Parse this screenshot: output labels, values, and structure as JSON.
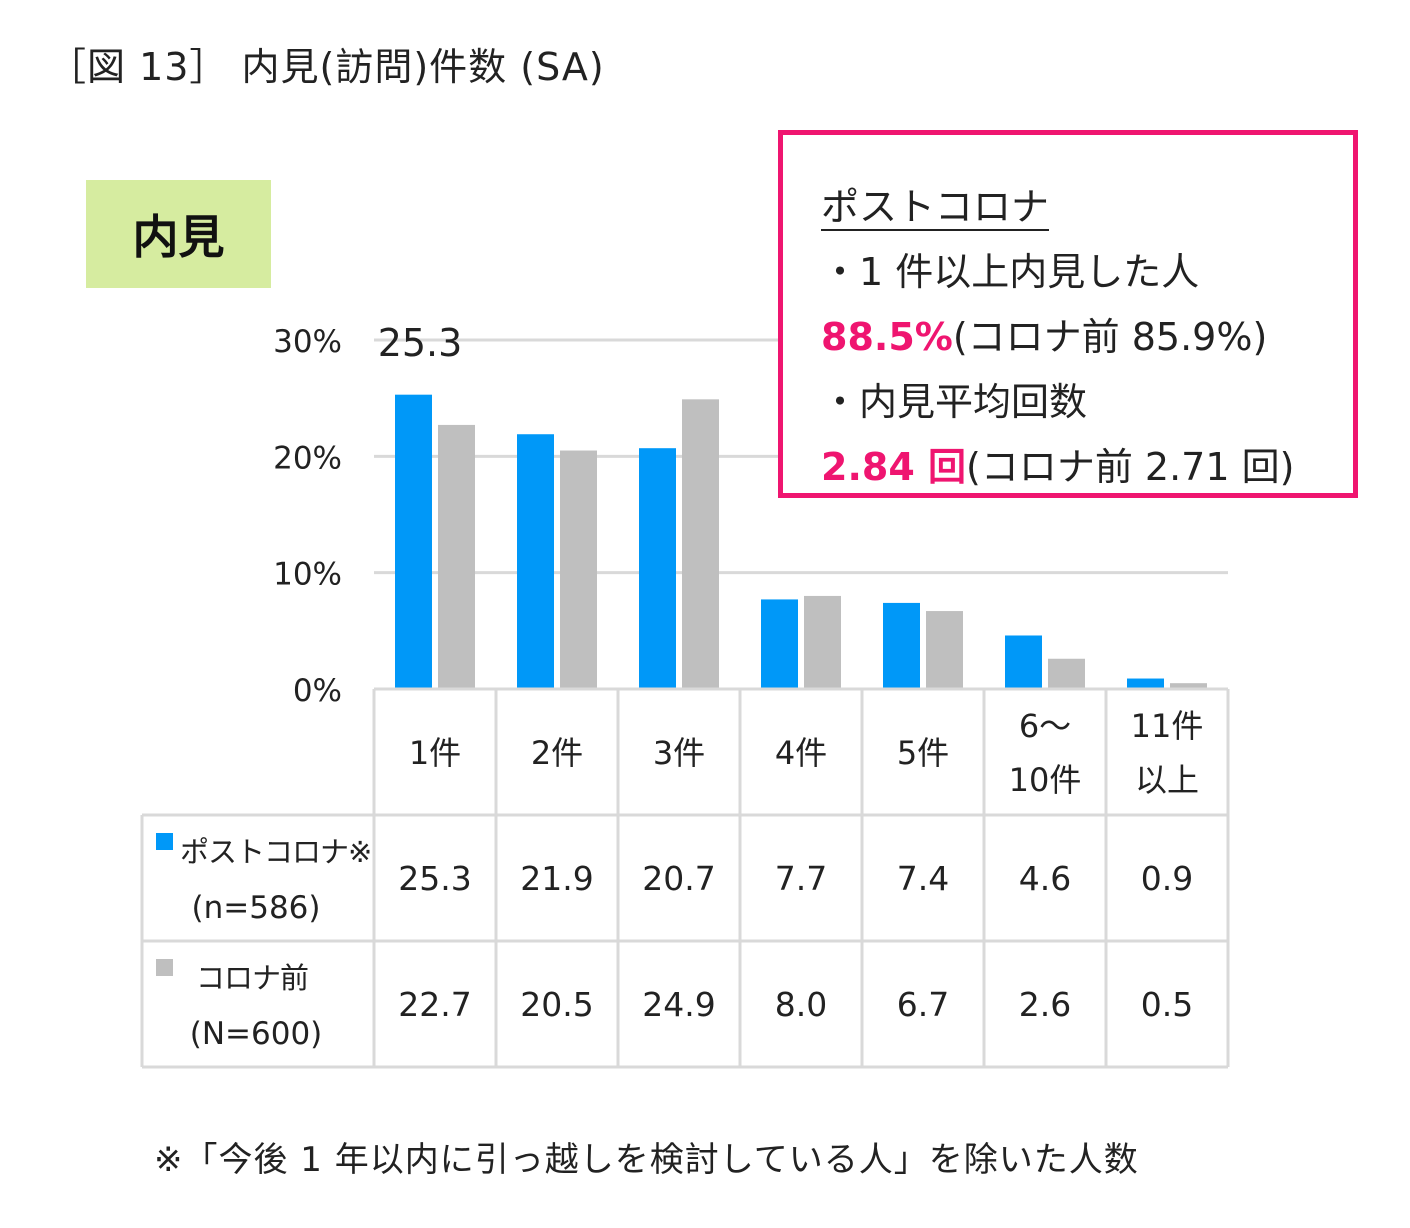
{
  "figure_title": "［図 13］ 内見(訪問)件数 (SA)",
  "badge_label": "内見",
  "callout": {
    "heading": "ポストコロナ",
    "line1": "・1 件以上内見した人",
    "line2_value": "88.5%",
    "line2_rest": "(コロナ前 85.9%)",
    "line3": "・内見平均回数",
    "line4_value": "2.84 回",
    "line4_rest": "(コロナ前 2.71 回)"
  },
  "footnote": "※「今後 1 年以内に引っ越しを検討している人」を除いた人数",
  "colors": {
    "post": "#0098f8",
    "pre": "#bfbfbf",
    "accent": "#ef1570",
    "grid": "#d9d9d9"
  },
  "chart_data": {
    "type": "bar",
    "categories": [
      "1件",
      "2件",
      "3件",
      "4件",
      "5件",
      "6～10件",
      "11件以上"
    ],
    "category_lines": [
      [
        "1件"
      ],
      [
        "2件"
      ],
      [
        "3件"
      ],
      [
        "4件"
      ],
      [
        "5件"
      ],
      [
        "6～",
        "10件"
      ],
      [
        "11件",
        "以上"
      ]
    ],
    "series": [
      {
        "name": "ポストコロナ※",
        "sub": "(n=586)",
        "values": [
          25.3,
          21.9,
          20.7,
          7.7,
          7.4,
          4.6,
          0.9
        ],
        "labels": [
          "25.3",
          "21.9",
          "20.7",
          "7.7",
          "7.4",
          "4.6",
          "0.9"
        ]
      },
      {
        "name": "コロナ前",
        "sub": "(N=600)",
        "values": [
          22.7,
          20.5,
          24.9,
          8.0,
          6.7,
          2.6,
          0.5
        ],
        "labels": [
          "22.7",
          "20.5",
          "24.9",
          "8.0",
          "6.7",
          "2.6",
          "0.5"
        ]
      }
    ],
    "yticks": [
      "0%",
      "10%",
      "20%",
      "30%"
    ],
    "ytick_values": [
      0,
      10,
      20,
      30
    ],
    "ylim": [
      0,
      30
    ],
    "data_label": "25.3",
    "grid": true
  }
}
